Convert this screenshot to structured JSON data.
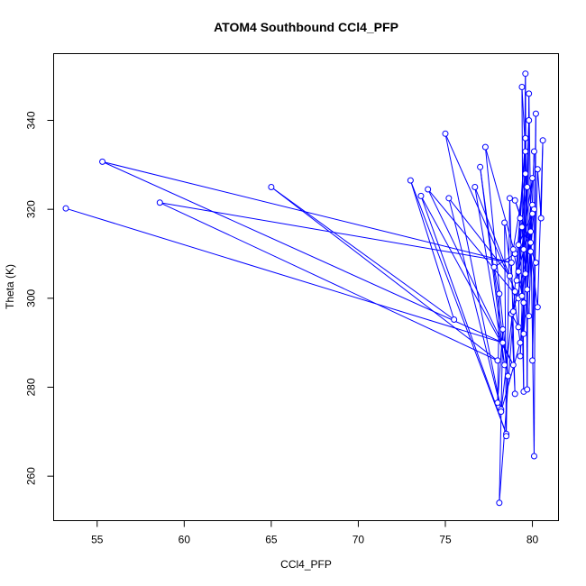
{
  "chart_data": {
    "type": "scatter",
    "title": "ATOM4 Southbound CCl4_PFP",
    "xlabel": "CCl4_PFP",
    "ylabel": "Theta (K)",
    "xlim": [
      52.5,
      81.5
    ],
    "ylim": [
      250,
      355
    ],
    "xticks": [
      55,
      60,
      65,
      70,
      75,
      80
    ],
    "yticks": [
      260,
      280,
      300,
      320,
      340
    ],
    "grid": false,
    "legend": "none",
    "colors": {
      "series": "#0000ff"
    },
    "series": [
      {
        "style": "line+point",
        "points": [
          [
            53.2,
            320.2
          ],
          [
            78.3,
            290.0
          ],
          [
            55.3,
            330.7
          ],
          [
            78.8,
            308.0
          ],
          [
            58.6,
            321.5
          ],
          [
            78.0,
            286.0
          ],
          [
            65.0,
            325.0
          ],
          [
            75.5,
            295.2
          ],
          [
            73.0,
            326.5
          ],
          [
            78.5,
            269.5
          ],
          [
            73.6,
            323.0
          ],
          [
            78.9,
            285.0
          ],
          [
            74.0,
            324.5
          ],
          [
            79.2,
            300.0
          ],
          [
            75.0,
            337.0
          ],
          [
            78.2,
            275.0
          ],
          [
            75.2,
            322.5
          ],
          [
            78.7,
            305.0
          ],
          [
            76.7,
            325.0
          ],
          [
            78.4,
            285.0
          ],
          [
            77.0,
            329.5
          ],
          [
            78.6,
            282.5
          ],
          [
            77.3,
            334.0
          ],
          [
            79.0,
            310.0
          ],
          [
            77.8,
            307.0
          ],
          [
            78.1,
            301.0
          ],
          [
            78.0,
            276.5
          ],
          [
            78.3,
            293.0
          ],
          [
            78.1,
            254.0
          ],
          [
            79.0,
            301.5
          ],
          [
            78.2,
            274.5
          ],
          [
            79.3,
            290.0
          ],
          [
            78.4,
            317.0
          ],
          [
            78.5,
            269.0
          ],
          [
            78.7,
            322.5
          ],
          [
            79.0,
            278.5
          ],
          [
            78.8,
            296.5
          ],
          [
            79.2,
            293.5
          ],
          [
            79.3,
            318.0
          ],
          [
            79.5,
            279.0
          ],
          [
            79.4,
            347.5
          ],
          [
            79.6,
            333.0
          ],
          [
            79.5,
            311.0
          ],
          [
            79.6,
            350.5
          ],
          [
            79.7,
            279.5
          ],
          [
            79.8,
            346.0
          ],
          [
            80.1,
            264.5
          ],
          [
            80.2,
            341.5
          ],
          [
            80.0,
            286.0
          ],
          [
            80.3,
            329.0
          ],
          [
            80.5,
            318.0
          ],
          [
            80.6,
            335.5
          ],
          [
            80.3,
            298.0
          ],
          [
            79.9,
            310.5
          ],
          [
            80.1,
            333.0
          ],
          [
            79.8,
            296.0
          ],
          [
            80.0,
            321.0
          ],
          [
            79.6,
            305.5
          ],
          [
            79.9,
            315.0
          ],
          [
            79.4,
            300.5
          ],
          [
            79.7,
            325.0
          ],
          [
            79.2,
            312.0
          ],
          [
            80.1,
            320.0
          ],
          [
            79.5,
            292.0
          ],
          [
            79.8,
            340.0
          ],
          [
            79.3,
            287.0
          ],
          [
            80.0,
            327.0
          ],
          [
            79.1,
            304.0
          ],
          [
            79.6,
            336.0
          ],
          [
            78.9,
            297.0
          ],
          [
            79.9,
            312.5
          ],
          [
            79.0,
            322.0
          ],
          [
            80.2,
            308.0
          ],
          [
            79.4,
            316.0
          ],
          [
            79.7,
            302.0
          ],
          [
            80.0,
            319.0
          ],
          [
            79.2,
            306.0
          ],
          [
            79.6,
            328.0
          ],
          [
            78.9,
            311.0
          ],
          [
            79.5,
            299.0
          ]
        ]
      }
    ]
  }
}
